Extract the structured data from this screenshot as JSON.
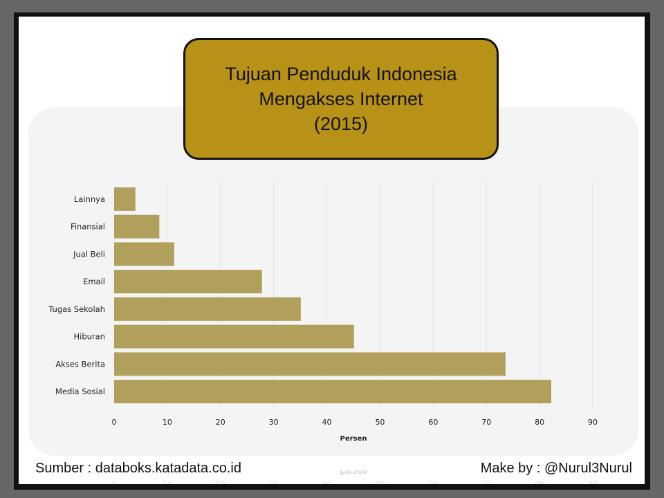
{
  "title_lines": [
    "Tujuan Penduduk Indonesia",
    "Mengakses Internet",
    "(2015)"
  ],
  "footer": {
    "source": "Sumber : databoks.katadata.co.id",
    "author": "Make by : @Nurul3Nurul"
  },
  "colors": {
    "bar": "#b0a05c",
    "title_bg": "#b89216",
    "panel": "#f4f4f4"
  },
  "chart_data": {
    "type": "bar",
    "orientation": "horizontal",
    "title": "Tujuan Penduduk Indonesia Mengakses Internet (2015)",
    "categories": [
      "Lainnya",
      "Finansial",
      "Jual Beli",
      "Email",
      "Tugas Sekolah",
      "Hiburan",
      "Akses Berita",
      "Media Sosial"
    ],
    "values": [
      4,
      8.5,
      11.3,
      27.8,
      35.1,
      45.1,
      73.6,
      82.2
    ],
    "xlabel": "Persen",
    "ylabel": "",
    "xlim": [
      0,
      90
    ],
    "xticks": [
      0,
      10,
      20,
      30,
      40,
      50,
      60,
      70,
      80,
      90
    ],
    "grid": "vertical",
    "legend": "none"
  }
}
